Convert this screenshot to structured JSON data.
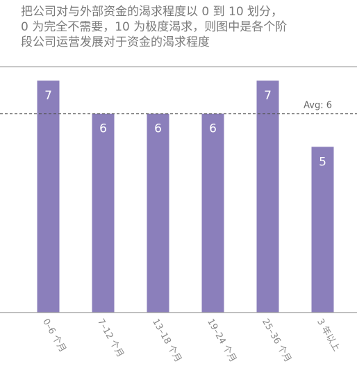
{
  "title_lines": [
    "把公司对与外部资金的渴求程度以 0 到 10 划分，",
    "0 为完全不需要，10 为极度渴求，则图中是各个阶",
    "段公司运营发展对于资金的渴求程度"
  ],
  "colors": {
    "bar": "#8b7fbb",
    "bar_label": "#ffffff",
    "axis": "#9a9a9a",
    "avg_line": "#555555",
    "avg_label": "#666666",
    "tick_label": "#888888",
    "title": "#7a7a7a"
  },
  "chart_data": {
    "type": "bar",
    "title": "把公司对与外部资金的渴求程度以 0 到 10 划分，0 为完全不需要，10 为极度渴求，则图中是各个阶段公司运营发展对于资金的渴求程度",
    "categories": [
      "0–6 个月",
      "7–12 个月",
      "13–18 个月",
      "19–24 个月",
      "25–36 个月",
      "3 年以上"
    ],
    "values": [
      7,
      6,
      6,
      6,
      7,
      5
    ],
    "data_labels": [
      "7",
      "6",
      "6",
      "6",
      "7",
      "5"
    ],
    "reference_line": {
      "value": 6,
      "label": "Avg: 6",
      "style": "dashed"
    },
    "xlabel": "",
    "ylabel": "",
    "ylim": [
      0,
      7
    ],
    "grid": false,
    "legend": "none"
  }
}
